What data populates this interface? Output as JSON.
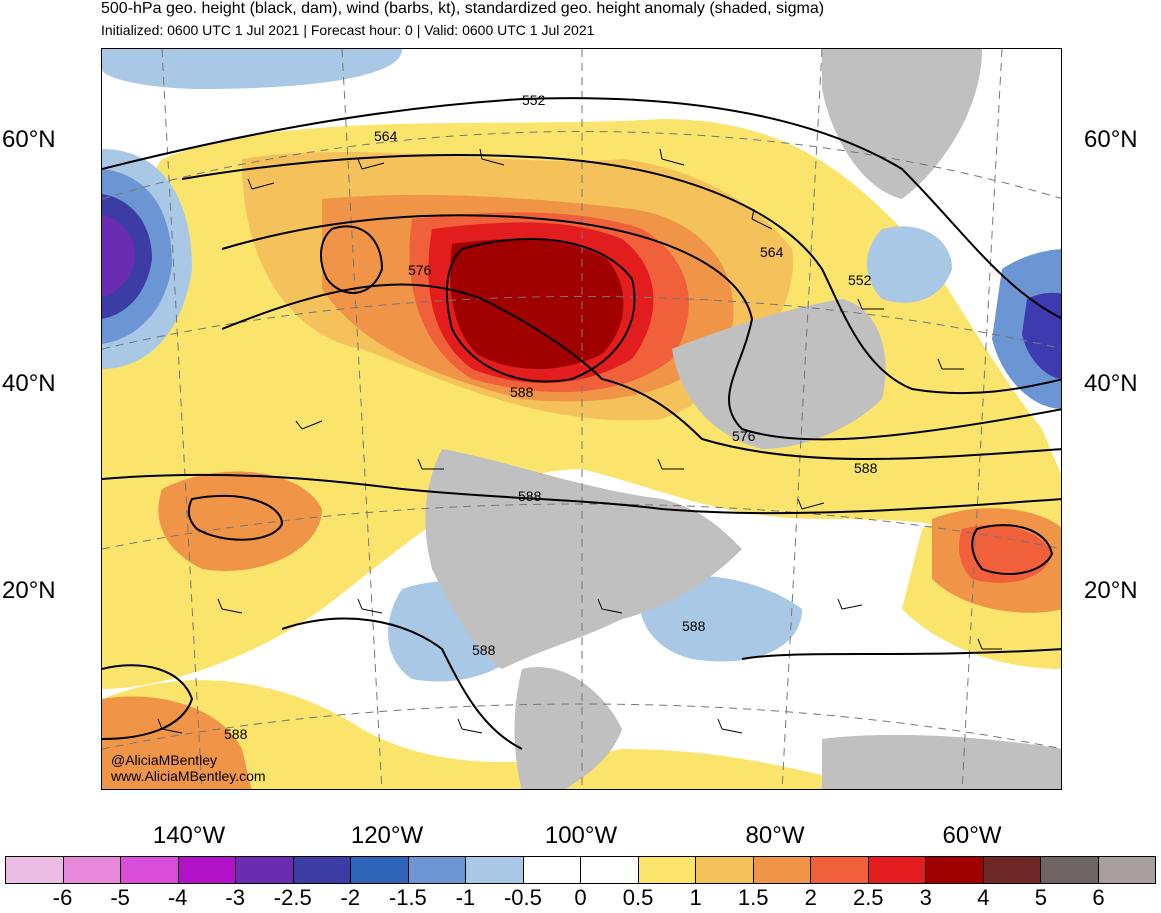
{
  "header": {
    "title": "500-hPa geo. height (black, dam), wind (barbs, kt), standardized geo. height anomaly (shaded, sigma)",
    "subtitle": "Initialized: 0600 UTC 1 Jul 2021 | Forecast hour: 0 | Valid: 0600 UTC 1 Jul 2021"
  },
  "map": {
    "lat_labels": [
      "60°N",
      "40°N",
      "20°N"
    ],
    "lon_labels": [
      "140°W",
      "120°W",
      "100°W",
      "80°W",
      "60°W"
    ],
    "contour_labels": [
      "552",
      "564",
      "576",
      "564",
      "552",
      "588",
      "576",
      "588",
      "588",
      "588",
      "588",
      "588"
    ],
    "land_mask_color": "#c0c0c0",
    "anomaly_features": [
      {
        "name": "pacific-northwest-ridge",
        "anomaly_sigma": 4,
        "color": "#a00000"
      },
      {
        "name": "gulf-of-alaska-low",
        "anomaly_sigma": -3,
        "color": "#5a2aa8"
      },
      {
        "name": "north-atlantic-low",
        "anomaly_sigma": -2.5,
        "color": "#3e3ab0"
      },
      {
        "name": "central-atlantic-high",
        "anomaly_sigma": 2.5,
        "color": "#f0603a"
      },
      {
        "name": "eastern-pacific-high",
        "anomaly_sigma": 2,
        "color": "#f09548"
      }
    ]
  },
  "credits": {
    "handle": "@AliciaMBentley",
    "website": "www.AliciaMBentley.com"
  },
  "colorbar": {
    "colors": [
      "#ebbde5",
      "#e689dd",
      "#d94ed9",
      "#b313c8",
      "#6a2cb0",
      "#3c3ca5",
      "#2f65b9",
      "#6b95d3",
      "#a8c8e6",
      "#ffffff",
      "#ffffff",
      "#fbe46b",
      "#f5c15a",
      "#f09548",
      "#f0603a",
      "#e31d1d",
      "#a00000",
      "#6e2828",
      "#6e6464",
      "#a89e9e"
    ],
    "ticks": [
      "-6",
      "-5",
      "-4",
      "-3",
      "-2.5",
      "-2",
      "-1.5",
      "-1",
      "-0.5",
      "0",
      "0.5",
      "1",
      "1.5",
      "2",
      "2.5",
      "3",
      "4",
      "5",
      "6"
    ]
  }
}
